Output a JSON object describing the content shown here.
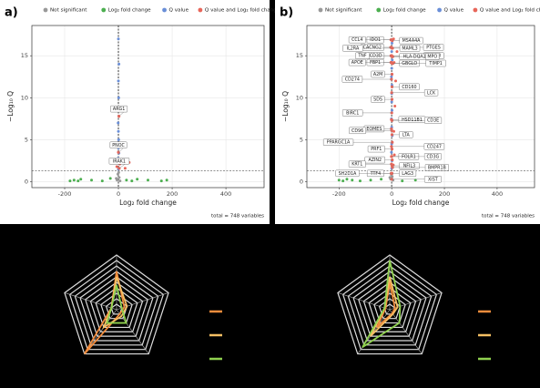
{
  "chart_data": [
    {
      "type": "scatter",
      "title": "a)",
      "x_label": "Log₂ fold change",
      "y_label": "−Log₁₀ Q",
      "caption": "total = 748 variables",
      "xlim": [
        -322,
        542
      ],
      "ylim": [
        -0.7,
        18.6
      ],
      "xticks": [
        -200,
        0,
        200,
        400
      ],
      "yticks": [
        0,
        5,
        10,
        15
      ],
      "grid": true,
      "hlines": [
        1.3
      ],
      "vlines": [
        -1,
        1
      ],
      "series": [
        {
          "name": "Not significant",
          "color": "#999999",
          "x": [
            -5,
            3,
            -2,
            6,
            -8,
            1
          ],
          "values": [
            0.2,
            0.5,
            0.9,
            0.1,
            0.4,
            1.1
          ]
        },
        {
          "name": "Log₂ fold change",
          "color": "#4caf50",
          "x": [
            -180,
            -165,
            -150,
            -140,
            -100,
            -60,
            -30,
            30,
            50,
            70,
            110,
            160,
            180
          ],
          "values": [
            0.1,
            0.2,
            0.1,
            0.3,
            0.2,
            0.1,
            0.4,
            0.2,
            0.1,
            0.3,
            0.2,
            0.1,
            0.2
          ]
        },
        {
          "name": "Q value",
          "color": "#6a8fd8",
          "x": [
            0,
            1,
            -1,
            2,
            0,
            1,
            0,
            -1,
            0,
            1,
            0,
            2,
            0
          ],
          "values": [
            1.5,
            2.2,
            2.8,
            3.4,
            4.0,
            5.0,
            6.0,
            7.0,
            8.5,
            10,
            12,
            14,
            17
          ]
        },
        {
          "name": "Q value and Log₂ fold change",
          "color": "#e8665a",
          "x": [
            5,
            -6,
            40,
            25
          ],
          "values": [
            2.1,
            1.8,
            2.3,
            1.6
          ]
        }
      ],
      "annotations": [
        {
          "label": "ARG1",
          "x": 2,
          "y": 7.8
        },
        {
          "label": "PNOC",
          "x": 0,
          "y": 3.5
        },
        {
          "label": "IRAK1",
          "x": 3,
          "y": 1.6
        }
      ]
    },
    {
      "type": "scatter",
      "title": "b)",
      "x_label": "Log₂ fold change",
      "y_label": "−Log₁₀ Q",
      "caption": "total = 748 variables",
      "xlim": [
        -322,
        542
      ],
      "ylim": [
        -0.7,
        18.6
      ],
      "xticks": [
        -200,
        0,
        200,
        400
      ],
      "yticks": [
        0,
        5,
        10,
        15
      ],
      "grid": true,
      "hlines": [
        1.3
      ],
      "vlines": [
        -1,
        1
      ],
      "series": [
        {
          "name": "Not significant",
          "color": "#999999",
          "x": [
            -4,
            2,
            -1,
            5,
            -7,
            1
          ],
          "values": [
            0.3,
            0.6,
            0.8,
            0.2,
            0.5,
            1.0
          ]
        },
        {
          "name": "Log₂ fold change",
          "color": "#4caf50",
          "x": [
            -200,
            -185,
            -170,
            -150,
            -120,
            -80,
            -40,
            40,
            90,
            130,
            175
          ],
          "values": [
            0.2,
            0.1,
            0.3,
            0.2,
            0.1,
            0.2,
            0.3,
            0.1,
            0.2,
            0.1,
            0.3
          ]
        },
        {
          "name": "Q value",
          "color": "#6a8fd8",
          "x": [
            0,
            1,
            -1,
            0,
            2,
            0,
            -1,
            1,
            0,
            0,
            1,
            -1,
            0,
            2,
            0,
            1
          ],
          "values": [
            1.6,
            2.5,
            3.5,
            4.5,
            5.5,
            6.5,
            7.5,
            8.5,
            9.5,
            10.5,
            11.5,
            12.5,
            13.5,
            14.5,
            15.5,
            16.5
          ]
        },
        {
          "name": "Q value and Log₂ fold change",
          "color": "#e8665a",
          "x": [
            6,
            10,
            8,
            12,
            15,
            9,
            20,
            7
          ],
          "values": [
            2.0,
            3.2,
            6.0,
            9.0,
            12.0,
            14.2,
            15.5,
            17.0
          ]
        }
      ],
      "annotations": [
        {
          "label": "IDO1",
          "x": -3,
          "y": 16.9
        },
        {
          "label": "CCL4",
          "x": -1,
          "y": 16.9
        },
        {
          "label": "MS4A4A",
          "x": 2,
          "y": 16.8
        },
        {
          "label": "PTGES",
          "x": -4,
          "y": 16.0
        },
        {
          "label": "CACNG2",
          "x": -2,
          "y": 16.0
        },
        {
          "label": "IL2RA",
          "x": 1,
          "y": 15.9
        },
        {
          "label": "MAML3",
          "x": 3,
          "y": 15.9
        },
        {
          "label": "CCL18",
          "x": -3,
          "y": 15.0
        },
        {
          "label": "CD3D",
          "x": -1,
          "y": 15.0
        },
        {
          "label": "TNF",
          "x": 0,
          "y": 15.0
        },
        {
          "label": "HLA-DQA1",
          "x": 2,
          "y": 14.9
        },
        {
          "label": "MPO",
          "x": 4,
          "y": 14.9
        },
        {
          "label": "FBP1",
          "x": -3,
          "y": 14.2
        },
        {
          "label": "APOE",
          "x": -1,
          "y": 14.2
        },
        {
          "label": "GBGLO",
          "x": 2,
          "y": 14.1
        },
        {
          "label": "TIMP1",
          "x": 5,
          "y": 14.1
        },
        {
          "label": "A2M",
          "x": 1,
          "y": 12.8
        },
        {
          "label": "CD274",
          "x": -1,
          "y": 12.2
        },
        {
          "label": "CD160",
          "x": 1,
          "y": 11.3
        },
        {
          "label": "LCK",
          "x": 0,
          "y": 10.6
        },
        {
          "label": "SDS",
          "x": 1,
          "y": 9.8
        },
        {
          "label": "BIRC1",
          "x": 0,
          "y": 8.2
        },
        {
          "label": "HSD11B1",
          "x": -1,
          "y": 7.4
        },
        {
          "label": "CD3E",
          "x": 1,
          "y": 7.3
        },
        {
          "label": "EOMES",
          "x": -1,
          "y": 6.3
        },
        {
          "label": "CD96",
          "x": 0,
          "y": 6.1
        },
        {
          "label": "LTA",
          "x": 1,
          "y": 5.6
        },
        {
          "label": "CD247",
          "x": -1,
          "y": 4.2
        },
        {
          "label": "PRF1",
          "x": 1,
          "y": 3.9
        },
        {
          "label": "PPARGC1A",
          "x": 2,
          "y": 4.7
        },
        {
          "label": "FOLR1",
          "x": -1,
          "y": 3.0
        },
        {
          "label": "CD3G",
          "x": 0,
          "y": 3.0
        },
        {
          "label": "AZIN2",
          "x": 2,
          "y": 2.6
        },
        {
          "label": "KRT1",
          "x": -1,
          "y": 2.1
        },
        {
          "label": "NFIL3",
          "x": 1,
          "y": 1.9
        },
        {
          "label": "BMPR1B",
          "x": 3,
          "y": 1.7
        },
        {
          "label": "TTF4",
          "x": -2,
          "y": 1.0
        },
        {
          "label": "SH2D1A",
          "x": -1,
          "y": 1.0
        },
        {
          "label": "LAG3",
          "x": 1,
          "y": 1.0
        },
        {
          "label": "XIST",
          "x": 0,
          "y": 0.3
        }
      ]
    },
    {
      "type": "radar",
      "rlim": [
        0,
        10
      ],
      "rticks": [
        1,
        2,
        3,
        4,
        5,
        6,
        7,
        8,
        9,
        10
      ],
      "series": [
        {
          "color": "#f28c3c",
          "values": [
            7,
            1.5,
            1,
            10,
            1
          ]
        },
        {
          "color": "#f5bf63",
          "values": [
            6,
            2,
            1.5,
            4,
            1
          ]
        },
        {
          "color": "#8fd14f",
          "values": [
            4.5,
            1,
            3,
            3,
            1
          ]
        }
      ]
    },
    {
      "type": "radar",
      "rlim": [
        0,
        10
      ],
      "rticks": [
        1,
        2,
        3,
        4,
        5,
        6,
        7,
        8,
        9,
        10
      ],
      "series": [
        {
          "color": "#f28c3c",
          "values": [
            5,
            1,
            0.8,
            4,
            0.8
          ]
        },
        {
          "color": "#f5bf63",
          "values": [
            6,
            1.5,
            1,
            6,
            1
          ]
        },
        {
          "color": "#8fd14f",
          "values": [
            9,
            2,
            3,
            8.5,
            1
          ]
        }
      ]
    }
  ]
}
